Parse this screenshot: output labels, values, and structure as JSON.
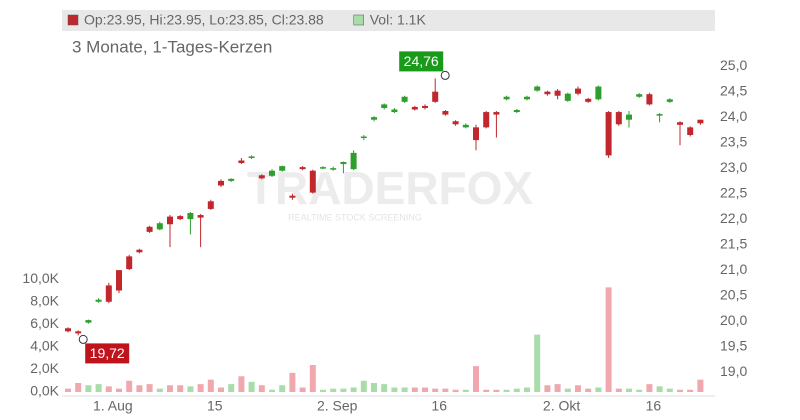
{
  "chart_data": {
    "type": "candlestick",
    "legend": [
      {
        "label": "Op:23.95, Hi:23.95, Lo:23.85, Cl:23.88",
        "color": "#c0282d"
      },
      {
        "label": "Vol: 1.1K",
        "color": "#a8dca8"
      }
    ],
    "subtitle": "3 Monate, 1-Tages-Kerzen",
    "watermark": {
      "title": "TRADERFOX",
      "subtitle": "REALTIME STOCK SCREENING"
    },
    "categories": [
      null,
      null,
      null,
      null,
      "1. Aug",
      null,
      null,
      null,
      null,
      null,
      null,
      null,
      null,
      null,
      "15",
      null,
      null,
      null,
      null,
      null,
      null,
      null,
      null,
      null,
      null,
      null,
      "2. Sep",
      null,
      null,
      null,
      null,
      null,
      null,
      null,
      null,
      null,
      "16",
      null,
      null,
      null,
      null,
      null,
      null,
      null,
      null,
      null,
      null,
      null,
      "2. Okt",
      null,
      null,
      null,
      null,
      null,
      null,
      null,
      null,
      "16",
      null,
      null,
      null,
      null,
      null
    ],
    "open": [
      19.86,
      19.8,
      19.97,
      20.38,
      20.7,
      21.0,
      21.27,
      21.4,
      21.85,
      21.8,
      22.05,
      22.06,
      22.0,
      22.08,
      22.35,
      22.75,
      22.75,
      23.15,
      23.2,
      22.86,
      22.85,
      22.95,
      22.46,
      23.02,
      22.95,
      23.0,
      22.97,
      23.08,
      22.98,
      23.6,
      23.95,
      24.18,
      24.1,
      24.3,
      24.2,
      24.22,
      24.5,
      24.12,
      23.92,
      23.8,
      23.8,
      24.1,
      24.1,
      24.35,
      24.1,
      24.35,
      24.52,
      24.5,
      24.52,
      24.32,
      24.56,
      24.36,
      24.35,
      24.1,
      24.1,
      23.95,
      24.4,
      24.45,
      24.03,
      24.3,
      23.9,
      23.8,
      23.95
    ],
    "high": [
      19.88,
      19.82,
      20.03,
      20.45,
      20.75,
      21.0,
      21.3,
      21.42,
      21.87,
      21.95,
      22.08,
      22.08,
      22.14,
      22.1,
      22.38,
      22.78,
      22.8,
      23.2,
      23.25,
      22.88,
      22.98,
      23.05,
      22.5,
      23.04,
      22.97,
      23.04,
      23.03,
      23.13,
      23.35,
      23.65,
      24.02,
      24.27,
      24.18,
      24.42,
      24.22,
      24.25,
      24.76,
      24.14,
      23.94,
      23.88,
      23.85,
      24.12,
      24.12,
      24.42,
      24.16,
      24.42,
      24.62,
      24.52,
      24.55,
      24.48,
      24.6,
      24.38,
      24.62,
      24.12,
      24.12,
      24.12,
      24.47,
      24.48,
      24.08,
      24.37,
      23.92,
      23.82,
      23.95
    ],
    "low": [
      19.78,
      19.72,
      19.95,
      20.36,
      20.35,
      20.55,
      21.0,
      21.33,
      21.73,
      21.78,
      21.45,
      21.98,
      21.7,
      21.45,
      22.18,
      22.63,
      22.73,
      23.08,
      23.18,
      22.78,
      22.83,
      22.93,
      22.38,
      22.96,
      22.5,
      22.98,
      22.95,
      22.9,
      22.96,
      23.55,
      23.92,
      24.15,
      24.08,
      24.28,
      24.13,
      24.15,
      24.28,
      24.03,
      23.83,
      23.78,
      23.35,
      23.78,
      23.6,
      24.33,
      24.08,
      24.33,
      24.5,
      24.42,
      24.35,
      24.3,
      24.43,
      24.28,
      24.33,
      23.2,
      23.83,
      23.8,
      24.38,
      24.23,
      23.9,
      24.28,
      23.45,
      23.62,
      23.85
    ],
    "close": [
      19.8,
      19.76,
      20.02,
      20.42,
      20.38,
      20.6,
      21.02,
      21.35,
      21.75,
      21.92,
      21.9,
      22.0,
      22.12,
      22.03,
      22.2,
      22.66,
      22.79,
      23.1,
      23.23,
      22.8,
      22.95,
      23.04,
      22.42,
      22.98,
      22.52,
      23.02,
      23.0,
      23.12,
      23.3,
      23.62,
      24.0,
      24.25,
      24.15,
      24.4,
      24.15,
      24.18,
      24.3,
      24.05,
      23.86,
      23.85,
      23.55,
      23.8,
      24.05,
      24.4,
      24.14,
      24.4,
      24.6,
      24.45,
      24.42,
      24.46,
      24.46,
      24.3,
      24.6,
      23.25,
      23.86,
      24.05,
      24.45,
      24.25,
      24.06,
      24.35,
      23.85,
      23.65,
      23.88
    ],
    "volume": [
      300,
      800,
      600,
      700,
      500,
      300,
      1000,
      600,
      700,
      300,
      600,
      600,
      500,
      700,
      1100,
      400,
      700,
      1400,
      900,
      600,
      200,
      600,
      1700,
      400,
      2400,
      200,
      300,
      300,
      400,
      1000,
      800,
      700,
      400,
      400,
      400,
      400,
      300,
      300,
      200,
      200,
      2300,
      200,
      200,
      200,
      300,
      400,
      5100,
      600,
      700,
      300,
      600,
      300,
      400,
      9300,
      300,
      300,
      200,
      700,
      500,
      300,
      200,
      200,
      1100
    ],
    "up_color": "#2e9e2e",
    "down_color": "#c0282d",
    "volume_up_color": "#a8dca8",
    "volume_down_color": "#f0a8ae",
    "ylim": [
      18.61,
      25.67
    ],
    "yticks": [
      {
        "value": 19,
        "label": "19,0"
      },
      {
        "value": 19.5,
        "label": "19,5"
      },
      {
        "value": 20,
        "label": "20,0"
      },
      {
        "value": 20.5,
        "label": "20,5"
      },
      {
        "value": 21,
        "label": "21,0"
      },
      {
        "value": 21.5,
        "label": "21,5"
      },
      {
        "value": 22,
        "label": "22,0"
      },
      {
        "value": 22.5,
        "label": "22,5"
      },
      {
        "value": 23,
        "label": "23,0"
      },
      {
        "value": 23.5,
        "label": "23,5"
      },
      {
        "value": 24,
        "label": "24,0"
      },
      {
        "value": 24.5,
        "label": "24,5"
      },
      {
        "value": 25,
        "label": "25,0"
      }
    ],
    "y2lim": [
      0,
      32000
    ],
    "y2ticks": [
      {
        "value": 0,
        "label": "0,0K"
      },
      {
        "value": 2000,
        "label": "2,0K"
      },
      {
        "value": 4000,
        "label": "4,0K"
      },
      {
        "value": 6000,
        "label": "6,0K"
      },
      {
        "value": 8000,
        "label": "8,0K"
      },
      {
        "value": 10000,
        "label": "10,0K"
      }
    ],
    "annotations": [
      {
        "label": "24,76",
        "value": 24.76,
        "color": "#1a9a1a"
      },
      {
        "label": "19,72",
        "value": 19.72,
        "color": "#c0141c"
      }
    ]
  }
}
